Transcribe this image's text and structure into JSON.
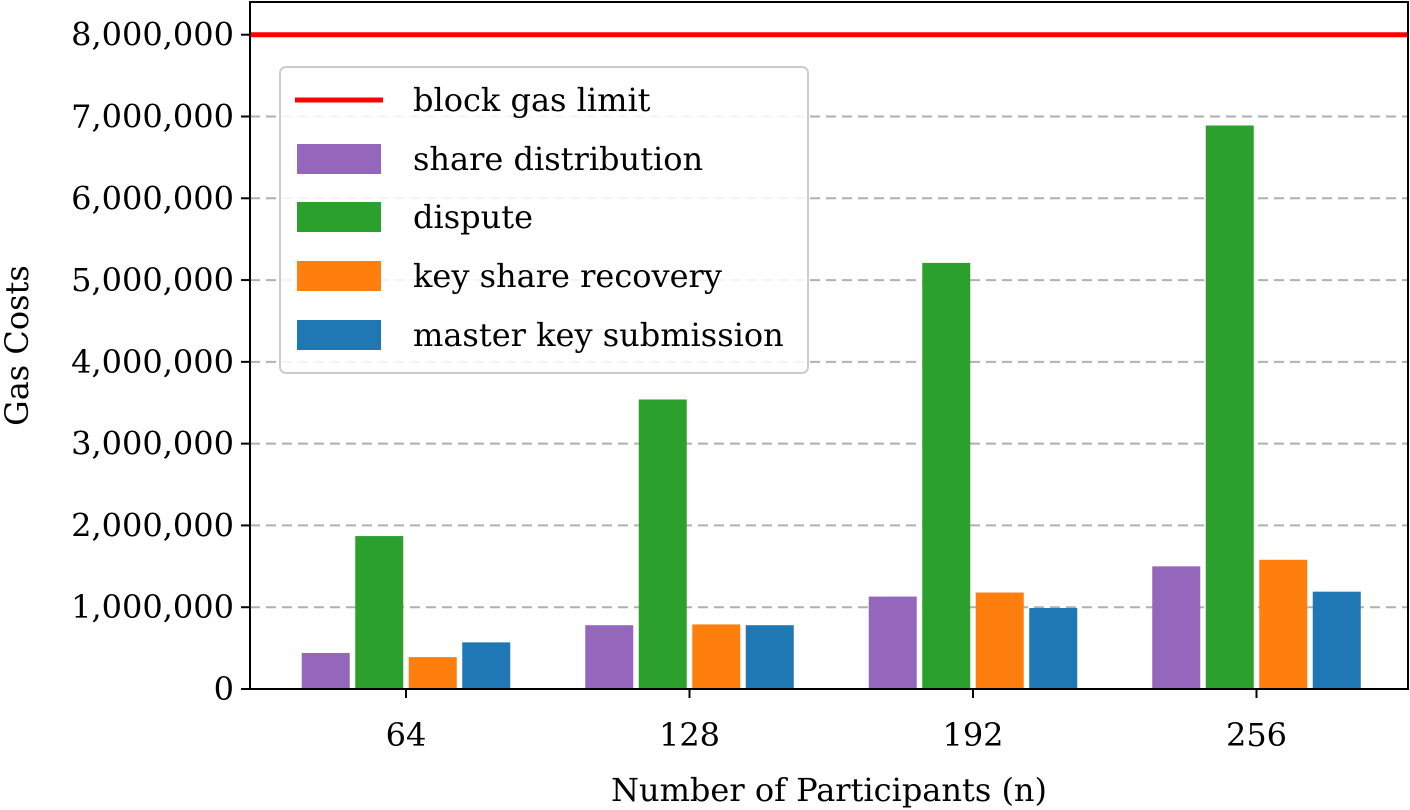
{
  "chart_data": {
    "type": "bar",
    "xlabel": "Number of Participants (n)",
    "ylabel": "Gas Costs",
    "categories": [
      "64",
      "128",
      "192",
      "256"
    ],
    "y_ticks": [
      0,
      1000000,
      2000000,
      3000000,
      4000000,
      5000000,
      6000000,
      7000000,
      8000000
    ],
    "y_tick_labels": [
      "0",
      "1,000,000",
      "2,000,000",
      "3,000,000",
      "4,000,000",
      "5,000,000",
      "6,000,000",
      "7,000,000",
      "8,000,000"
    ],
    "ylim": [
      0,
      8400000
    ],
    "grid": "horizontal-dashed",
    "legend_position": "upper-left",
    "reference_line": {
      "name": "block gas limit",
      "value": 8000000,
      "color": "#ff0000"
    },
    "series": [
      {
        "name": "share distribution",
        "color": "#9467bd",
        "values": [
          440000,
          780000,
          1130000,
          1500000
        ]
      },
      {
        "name": "dispute",
        "color": "#2ca02c",
        "values": [
          1870000,
          3540000,
          5210000,
          6890000
        ]
      },
      {
        "name": "key share recovery",
        "color": "#ff7f0e",
        "values": [
          390000,
          790000,
          1180000,
          1580000
        ]
      },
      {
        "name": "master key submission",
        "color": "#1f77b4",
        "values": [
          570000,
          780000,
          990000,
          1190000
        ]
      }
    ]
  }
}
